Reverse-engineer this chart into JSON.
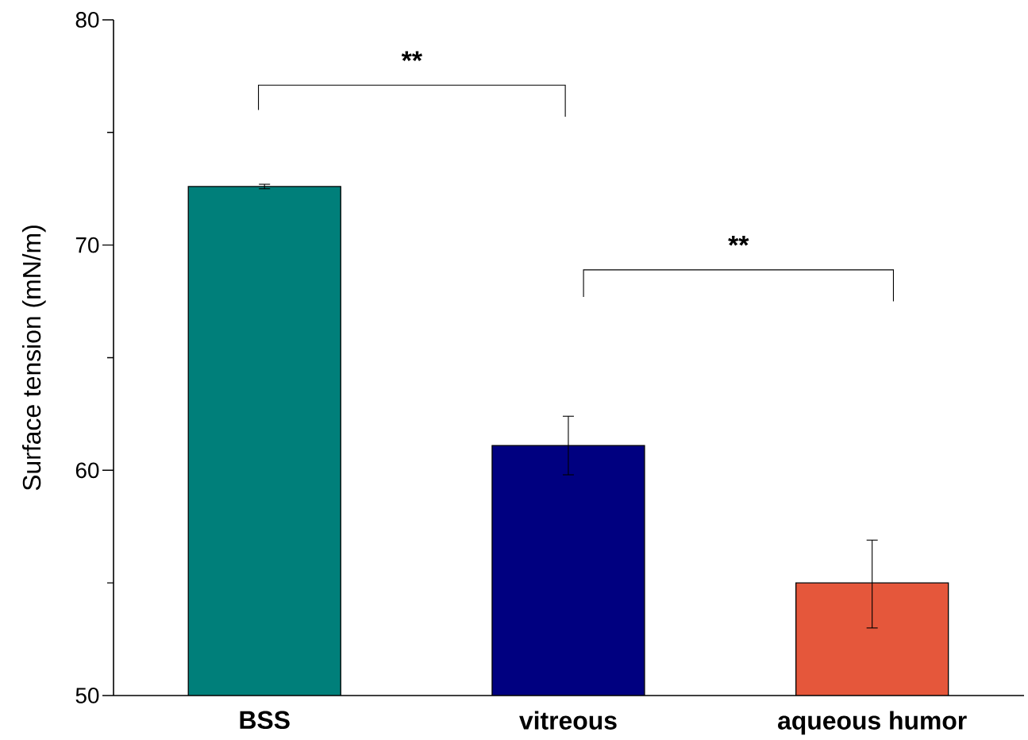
{
  "chart_data": {
    "type": "bar",
    "ylabel": "Surface tension (mN/m)",
    "categories": [
      "BSS",
      "vitreous",
      "aqueous humor"
    ],
    "values": [
      72.6,
      61.1,
      55.0
    ],
    "colors": [
      "#007f7a",
      "#000080",
      "#e5573b"
    ],
    "errors": [
      0.1,
      1.3,
      [
        53.0,
        56.9
      ]
    ],
    "ylim": [
      50,
      80
    ],
    "yticks": [
      50,
      {
        "value": 55,
        "label": null
      },
      60,
      {
        "value": 65,
        "label": null
      },
      70,
      {
        "value": 75,
        "label": null
      },
      80
    ],
    "annotations": [
      "**",
      "**"
    ],
    "grid": false
  }
}
